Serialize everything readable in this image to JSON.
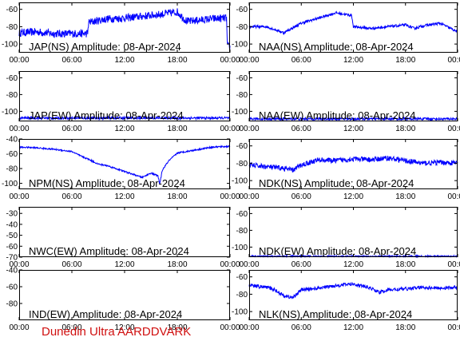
{
  "footer": "Dunedin Ultra AARDDVARK",
  "colors": {
    "trace": "#0000ff",
    "axis": "#000000",
    "footer": "#d01010"
  },
  "chart_data": [
    {
      "type": "line",
      "title": "JAP(NS) Amplitude: 08-Apr-2024",
      "xticks": [
        "00:00",
        "06:00",
        "12:00",
        "18:00",
        "00:00"
      ],
      "ylim": [
        -110,
        -52
      ],
      "yticks": [
        -100,
        -80,
        -60
      ],
      "noise": 9,
      "series": [
        {
          "x": [
            0,
            2,
            4,
            7.8,
            7.9,
            10,
            12,
            14,
            16,
            18,
            19,
            19.3,
            20,
            22,
            23.6,
            23.7,
            24
          ],
          "y": [
            -87,
            -86,
            -88,
            -88,
            -75,
            -71,
            -70,
            -68,
            -66,
            -63,
            -73,
            -74,
            -73,
            -71,
            -70,
            -102,
            -104
          ]
        }
      ]
    },
    {
      "type": "line",
      "title": "NAA(NS) Amplitude: 08-Apr-2024",
      "xticks": [
        "00:00",
        "06:00",
        "12:00",
        "18:00",
        "00:00"
      ],
      "ylim": [
        -110,
        -52
      ],
      "yticks": [
        -100,
        -80,
        -60
      ],
      "noise": 3,
      "series": [
        {
          "x": [
            0,
            2,
            4,
            6,
            8,
            10,
            11.8,
            12,
            14,
            17,
            18,
            19,
            20,
            22,
            24
          ],
          "y": [
            -80,
            -80,
            -87,
            -76,
            -70,
            -64,
            -67,
            -80,
            -82,
            -79,
            -78,
            -82,
            -79,
            -76,
            -86
          ]
        }
      ]
    },
    {
      "type": "line",
      "title": "JAP(EW) Amplitude: 08-Apr-2024",
      "xticks": [
        "00:00",
        "06:00",
        "12:00",
        "18:00",
        "00:00"
      ],
      "ylim": [
        -112,
        -52
      ],
      "yticks": [
        -100,
        -80,
        -60
      ],
      "noise": 3,
      "series": [
        {
          "x": [
            0,
            24
          ],
          "y": [
            -108,
            -108
          ]
        }
      ]
    },
    {
      "type": "line",
      "title": "NAA(EW) Amplitude: 08-Apr-2024",
      "xticks": [
        "00:00",
        "06:00",
        "12:00",
        "18:00",
        "00:00"
      ],
      "ylim": [
        -112,
        -52
      ],
      "yticks": [
        -100,
        -80,
        -60
      ],
      "noise": 3,
      "series": [
        {
          "x": [
            0,
            24
          ],
          "y": [
            -109,
            -109
          ]
        }
      ]
    },
    {
      "type": "line",
      "title": "NPM(NS) Amplitude: 08-Apr-2024",
      "xticks": [
        "00:00",
        "06:00",
        "12:00",
        "18:00",
        "00:00"
      ],
      "ylim": [
        -108,
        -40
      ],
      "yticks": [
        -100,
        -80,
        -60,
        -40
      ],
      "noise": 2,
      "series": [
        {
          "x": [
            0,
            2,
            4,
            6,
            7,
            8,
            9,
            10,
            11,
            12,
            13,
            14,
            15,
            15.8,
            16,
            16.3,
            17,
            18,
            20,
            22,
            24
          ],
          "y": [
            -51,
            -52,
            -54,
            -57,
            -63,
            -68,
            -74,
            -76,
            -80,
            -84,
            -88,
            -92,
            -86,
            -90,
            -101,
            -82,
            -70,
            -59,
            -55,
            -51,
            -50
          ]
        }
      ]
    },
    {
      "type": "line",
      "title": "NDK(NS) Amplitude: 08-Apr-2024",
      "xticks": [
        "00:00",
        "06:00",
        "12:00",
        "18:00",
        "00:00"
      ],
      "ylim": [
        -110,
        -52
      ],
      "yticks": [
        -100,
        -80,
        -60
      ],
      "noise": 6,
      "series": [
        {
          "x": [
            0,
            2,
            4,
            5,
            6,
            8,
            10,
            12,
            14,
            16,
            18,
            20,
            22,
            24
          ],
          "y": [
            -82,
            -84,
            -86,
            -88,
            -82,
            -76,
            -77,
            -75,
            -76,
            -74,
            -77,
            -80,
            -79,
            -80
          ]
        }
      ]
    },
    {
      "type": "line",
      "title": "NWC(EW) Amplitude: 08-Apr-2024",
      "xticks": [
        "00:00",
        "06:00",
        "12:00",
        "18:00",
        "00:00"
      ],
      "ylim": [
        -70,
        -24
      ],
      "yticks": [
        -70,
        -60,
        -50,
        -40,
        -30
      ],
      "noise": 0,
      "series": [
        {
          "x": [],
          "y": []
        }
      ]
    },
    {
      "type": "line",
      "title": "NDK(EW) Amplitude: 08-Apr-2024",
      "xticks": [
        "00:00",
        "06:00",
        "12:00",
        "18:00",
        "00:00"
      ],
      "ylim": [
        -112,
        -52
      ],
      "yticks": [
        -100,
        -80,
        -60
      ],
      "noise": 2,
      "series": [
        {
          "x": [
            0,
            24
          ],
          "y": [
            -111,
            -111
          ]
        }
      ]
    },
    {
      "type": "line",
      "title": "IND(EW) Amplitude: 08-Apr-2024",
      "xticks": [
        "00:00",
        "06:00",
        "12:00",
        "18:00",
        "00:00"
      ],
      "ylim": [
        -100,
        -40
      ],
      "yticks": [
        -80,
        -60,
        -40
      ],
      "noise": 0,
      "series": [
        {
          "x": [],
          "y": []
        }
      ]
    },
    {
      "type": "line",
      "title": "NLK(NS) Amplitude: 08-Apr-2024",
      "xticks": [
        "00:00",
        "06:00",
        "12:00",
        "18:00",
        "00:00"
      ],
      "ylim": [
        -110,
        -52
      ],
      "yticks": [
        -100,
        -80,
        -60
      ],
      "noise": 4,
      "series": [
        {
          "x": [
            0,
            2,
            3,
            4,
            5,
            6,
            8,
            10,
            12,
            14,
            15,
            16,
            18,
            20,
            22,
            24
          ],
          "y": [
            -70,
            -72,
            -75,
            -82,
            -84,
            -75,
            -73,
            -70,
            -68,
            -73,
            -78,
            -75,
            -74,
            -72,
            -73,
            -72
          ]
        }
      ]
    }
  ]
}
